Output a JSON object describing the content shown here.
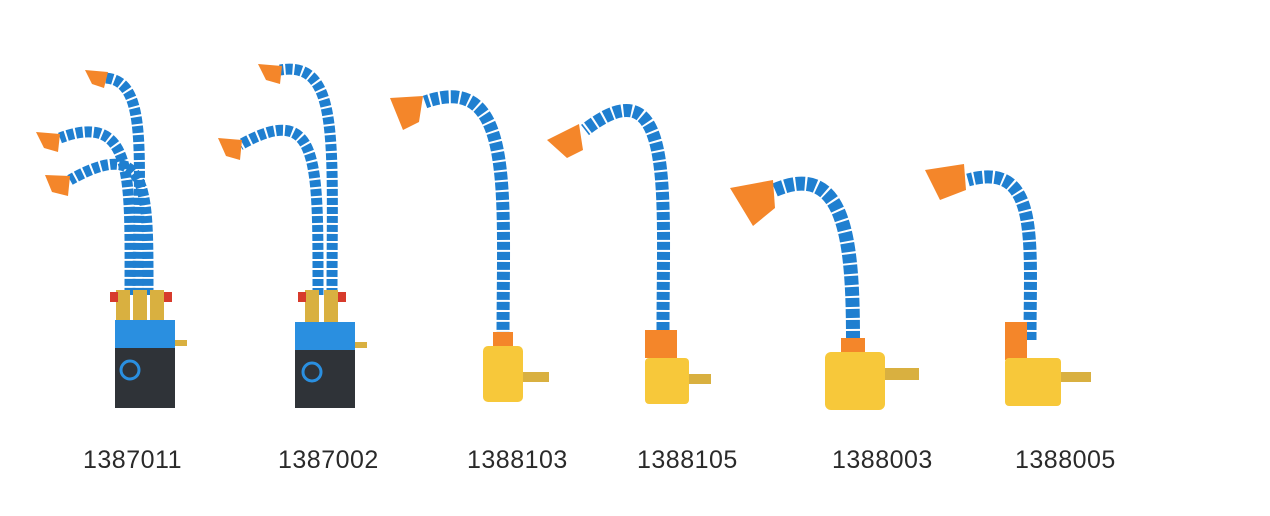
{
  "products": [
    {
      "code": "1387011",
      "base": "magnetic",
      "nozzles": 3
    },
    {
      "code": "1387002",
      "base": "magnetic",
      "nozzles": 2
    },
    {
      "code": "1388103",
      "base": "round",
      "nozzles": 1
    },
    {
      "code": "1388105",
      "base": "block",
      "nozzles": 1
    },
    {
      "code": "1388003",
      "base": "round-large",
      "nozzles": 1
    },
    {
      "code": "1388005",
      "base": "block",
      "nozzles": 1
    }
  ],
  "colors": {
    "hose": "#1f7fd0",
    "hose_light": "#57aef0",
    "nozzle": "#f4862a",
    "valve_brass": "#d9b040",
    "magnet_blue": "#2a8fe0",
    "magnet_body": "#2f3338",
    "base_yellow": "#f7c83a",
    "valve_red": "#d73b2c"
  }
}
